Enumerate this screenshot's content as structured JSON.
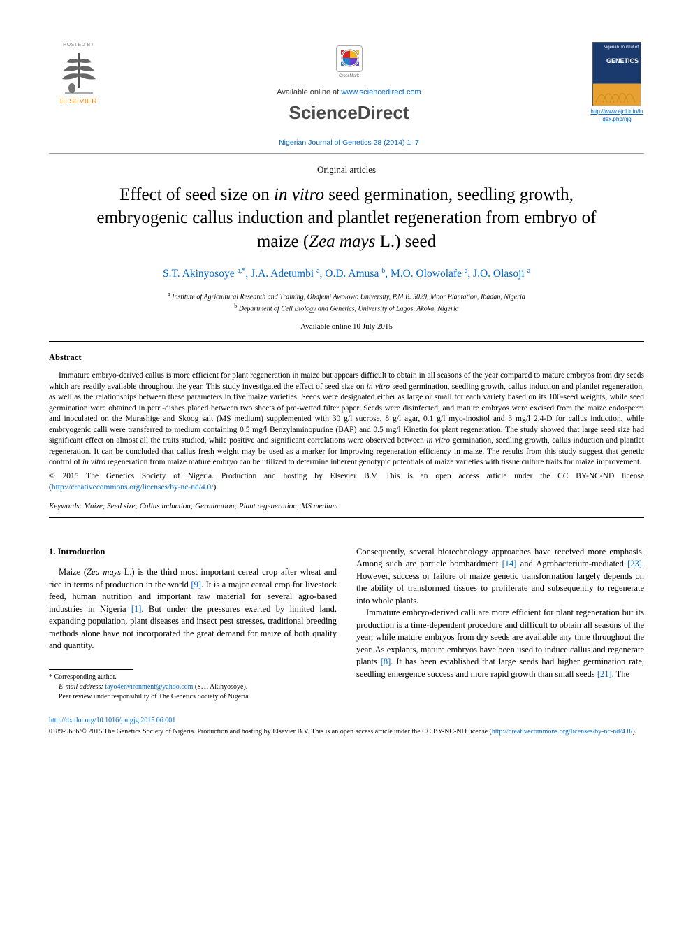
{
  "header": {
    "hosted_by": "HOSTED BY",
    "elsevier": "ELSEVIER",
    "crossmark": "CrossMark",
    "avail_prefix": "Available online at ",
    "avail_url": "www.sciencedirect.com",
    "brand": "ScienceDirect",
    "journal_ref": "Nigerian Journal of Genetics 28 (2014) 1–7",
    "cover_line1": "Nigerian Journal of",
    "cover_line2": "GENETICS",
    "cover_link": "http://www.ajol.info/index.php/njg"
  },
  "article": {
    "type": "Original articles",
    "title_1": "Effect of seed size on ",
    "title_em1": "in vitro",
    "title_2": " seed germination, seedling growth, embryogenic callus induction and plantlet regeneration from embryo of maize (",
    "title_em2": "Zea mays",
    "title_3": " L.) seed",
    "authors_html": "S.T. Akinyosoye <sup>a,*</sup>, J.A. Adetumbi <sup>a</sup>, O.D. Amusa <sup>b</sup>, M.O. Olowolafe <sup>a</sup>, J.O. Olasoji <sup>a</sup>",
    "aff_a": "Institute of Agricultural Research and Training, Obafemi Awolowo University, P.M.B. 5029, Moor Plantation, Ibadan, Nigeria",
    "aff_b": "Department of Cell Biology and Genetics, University of Lagos, Akoka, Nigeria",
    "avail_date": "Available online 10 July 2015"
  },
  "abstract": {
    "heading": "Abstract",
    "body_1": "Immature embryo-derived callus is more efficient for plant regeneration in maize but appears difficult to obtain in all seasons of the year compared to mature embryos from dry seeds which are readily available throughout the year. This study investigated the effect of seed size on ",
    "body_em1": "in vitro",
    "body_2": " seed germination, seedling growth, callus induction and plantlet regeneration, as well as the relationships between these parameters in five maize varieties. Seeds were designated either as large or small for each variety based on its 100-seed weights, while seed germination were obtained in petri-dishes placed between two sheets of pre-wetted filter paper. Seeds were disinfected, and mature embryos were excised from the maize endosperm and inoculated on the Murashige and Skoog salt (MS medium) supplemented with 30 g/l sucrose, 8 g/l agar, 0.1 g/l myo-inositol and 3 mg/l 2,4-D for callus induction, while embryogenic calli were transferred to medium containing 0.5 mg/l Benzylaminopurine (BAP) and 0.5 mg/l Kinetin for plant regeneration. The study showed that large seed size had significant effect on almost all the traits studied, while positive and significant correlations were observed between ",
    "body_em2": "in vitro",
    "body_3": " germination, seedling growth, callus induction and plantlet regeneration. It can be concluded that callus fresh weight may be used as a marker for improving regeneration efficiency in maize. The results from this study suggest that genetic control of ",
    "body_em3": "in vitro",
    "body_4": " regeneration from maize mature embryo can be utilized to determine inherent genotypic potentials of maize varieties with tissue culture traits for maize improvement.",
    "copyright": "© 2015 The Genetics Society of Nigeria. Production and hosting by Elsevier B.V. This is an open access article under the CC BY-NC-ND license (",
    "license_url": "http://creativecommons.org/licenses/by-nc-nd/4.0/",
    "copyright_end": ").",
    "keywords_label": "Keywords:",
    "keywords": " Maize; Seed size; Callus induction; Germination; Plant regeneration; MS medium"
  },
  "intro": {
    "heading": "1. Introduction",
    "p1_a": "Maize (",
    "p1_em": "Zea mays",
    "p1_b": " L.) is the third most important cereal crop after wheat and rice in terms of production in the world ",
    "p1_ref1": "[9]",
    "p1_c": ". It is a major cereal crop for livestock feed, human nutrition and important raw material for several agro-based industries in Nigeria ",
    "p1_ref2": "[1]",
    "p1_d": ". But under the pressures exerted by limited land, expanding population, plant diseases and insect pest stresses, traditional breeding methods alone have not incorporated the great demand for maize of both quality and quantity. ",
    "p2_a": "Consequently, several biotechnology approaches have received more emphasis. Among such are particle bombardment ",
    "p2_ref1": "[14]",
    "p2_b": " and Agrobacterium-mediated ",
    "p2_ref2": "[23]",
    "p2_c": ". However, success or failure of maize genetic transformation largely depends on the ability of transformed tissues to proliferate and subsequently to regenerate into whole plants.",
    "p3_a": "Immature embryo-derived calli are more efficient for plant regeneration but its production is a time-dependent procedure and difficult to obtain all seasons of the year, while mature embryos from dry seeds are available any time throughout the year. As explants, mature embryos have been used to induce callus and regenerate plants ",
    "p3_ref1": "[8]",
    "p3_b": ". It has been established that large seeds had higher germination rate, seedling emergence success and more rapid growth than small seeds ",
    "p3_ref2": "[21]",
    "p3_c": ". The"
  },
  "footnotes": {
    "corr": "* Corresponding author.",
    "email_label": "E-mail address:",
    "email": "tayo4environment@yahoo.com",
    "email_who": " (S.T. Akinyosoye).",
    "peer": "Peer review under responsibility of The Genetics Society of Nigeria."
  },
  "footer": {
    "doi": "http://dx.doi.org/10.1016/j.nigjg.2015.06.001",
    "issn_line": "0189-9686/© 2015 The Genetics Society of Nigeria. Production and hosting by Elsevier B.V. This is an open access article under the CC BY-NC-ND license (",
    "license_url": "http://creativecommons.org/licenses/by-nc-nd/4.0/",
    "issn_end": ")."
  },
  "colors": {
    "link": "#0066cc",
    "elsevier_orange": "#ff7a00",
    "cover_blue": "#1a3a6e",
    "cover_gold": "#e8a030"
  }
}
